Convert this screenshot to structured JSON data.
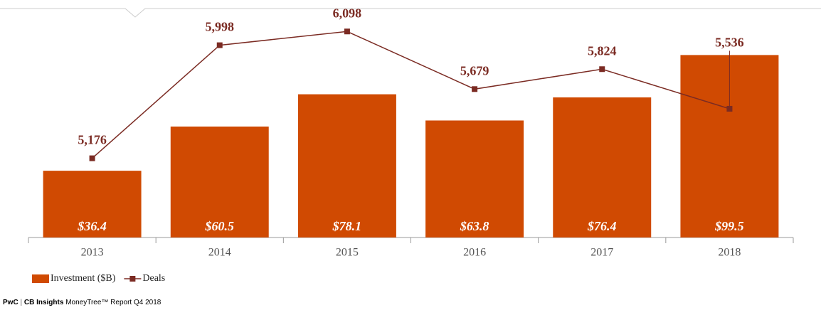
{
  "chart_data": {
    "type": "bar",
    "categories": [
      "2013",
      "2014",
      "2015",
      "2016",
      "2017",
      "2018"
    ],
    "series": [
      {
        "name": "Investment ($B)",
        "type": "bar",
        "color": "#d04a02",
        "values": [
          36.4,
          60.5,
          78.1,
          63.8,
          76.4,
          99.5
        ],
        "value_labels": [
          "$36.4",
          "$60.5",
          "$78.1",
          "$63.8",
          "$76.4",
          "$99.5"
        ]
      },
      {
        "name": "Deals",
        "type": "line",
        "axis": "y2",
        "color": "#7b2b23",
        "values": [
          5176,
          5998,
          6098,
          5679,
          5824,
          5536
        ],
        "value_labels": [
          "5,176",
          "5,998",
          "6,098",
          "5,679",
          "5,824",
          "5,536"
        ]
      }
    ],
    "ylim": [
      0,
      114
    ],
    "y2lim": [
      4600,
      6120
    ]
  },
  "footer": {
    "brand": "PwC",
    "separator": "|",
    "source": "CB Insights",
    "report": "MoneyTree™ Report Q4 2018"
  }
}
